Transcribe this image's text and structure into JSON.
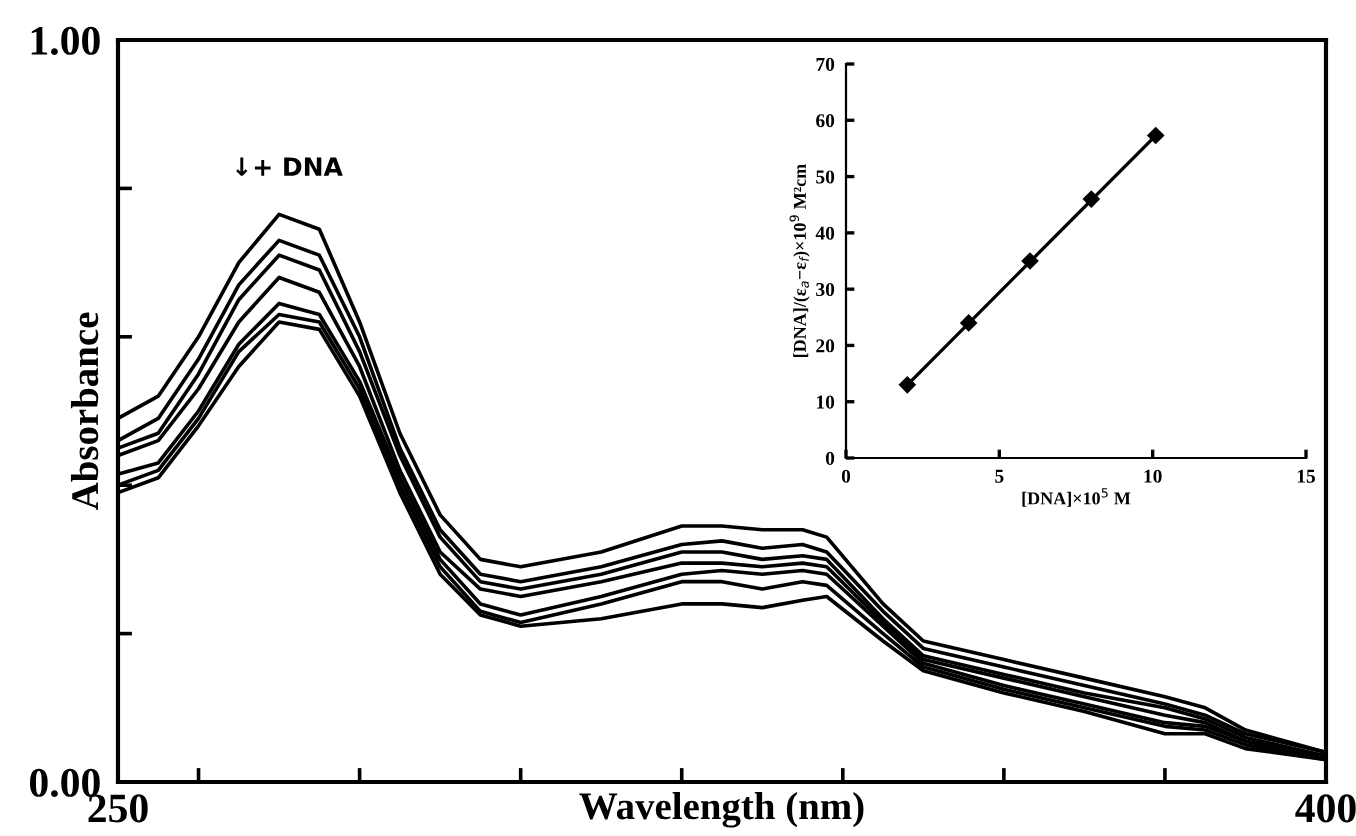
{
  "chart_data": [
    {
      "type": "line",
      "xlabel": "Wavelength (nm)",
      "ylabel": "Absorbance",
      "xlim": [
        250,
        400
      ],
      "ylim": [
        0,
        1
      ],
      "xticks": [
        {
          "value": 250,
          "label": "250"
        },
        {
          "value": 260,
          "label": null
        },
        {
          "value": 280,
          "label": null
        },
        {
          "value": 300,
          "label": null
        },
        {
          "value": 320,
          "label": null
        },
        {
          "value": 340,
          "label": null
        },
        {
          "value": 360,
          "label": null
        },
        {
          "value": 380,
          "label": null
        },
        {
          "value": 400,
          "label": "400"
        }
      ],
      "yticks": [
        {
          "value": 0,
          "label": "0.00"
        },
        {
          "value": 0.2,
          "label": null
        },
        {
          "value": 0.4,
          "label": null
        },
        {
          "value": 0.6,
          "label": null
        },
        {
          "value": 0.8,
          "label": null
        },
        {
          "value": 1,
          "label": "1.00"
        }
      ],
      "x": [
        250,
        255,
        260,
        265,
        270,
        275,
        280,
        285,
        290,
        295,
        300,
        310,
        320,
        325,
        330,
        335,
        338,
        345,
        350,
        360,
        370,
        380,
        385,
        390,
        400
      ],
      "series": [
        {
          "color": "#000000",
          "values": [
            0.49,
            0.52,
            0.6,
            0.7,
            0.765,
            0.745,
            0.62,
            0.47,
            0.36,
            0.3,
            0.29,
            0.31,
            0.345,
            0.345,
            0.34,
            0.34,
            0.33,
            0.24,
            0.19,
            0.165,
            0.14,
            0.115,
            0.1,
            0.07,
            0.04
          ]
        },
        {
          "color": "#000000",
          "values": [
            0.46,
            0.49,
            0.57,
            0.67,
            0.73,
            0.71,
            0.6,
            0.45,
            0.34,
            0.28,
            0.27,
            0.29,
            0.32,
            0.325,
            0.315,
            0.32,
            0.31,
            0.23,
            0.18,
            0.155,
            0.13,
            0.105,
            0.09,
            0.065,
            0.04
          ]
        },
        {
          "color": "#000000",
          "values": [
            0.45,
            0.47,
            0.55,
            0.65,
            0.71,
            0.69,
            0.58,
            0.44,
            0.33,
            0.27,
            0.26,
            0.28,
            0.31,
            0.31,
            0.3,
            0.305,
            0.3,
            0.22,
            0.17,
            0.145,
            0.12,
            0.1,
            0.085,
            0.06,
            0.035
          ]
        },
        {
          "color": "#000000",
          "values": [
            0.44,
            0.46,
            0.53,
            0.62,
            0.68,
            0.66,
            0.56,
            0.42,
            0.31,
            0.26,
            0.25,
            0.27,
            0.295,
            0.295,
            0.29,
            0.295,
            0.29,
            0.215,
            0.165,
            0.14,
            0.115,
            0.09,
            0.08,
            0.055,
            0.035
          ]
        },
        {
          "color": "#000000",
          "values": [
            0.415,
            0.43,
            0.5,
            0.59,
            0.645,
            0.63,
            0.54,
            0.41,
            0.3,
            0.24,
            0.225,
            0.25,
            0.28,
            0.285,
            0.28,
            0.285,
            0.28,
            0.21,
            0.16,
            0.13,
            0.105,
            0.08,
            0.075,
            0.055,
            0.03
          ]
        },
        {
          "color": "#000000",
          "values": [
            0.4,
            0.42,
            0.49,
            0.58,
            0.63,
            0.62,
            0.53,
            0.4,
            0.29,
            0.23,
            0.215,
            0.24,
            0.27,
            0.27,
            0.26,
            0.27,
            0.265,
            0.2,
            0.155,
            0.125,
            0.1,
            0.075,
            0.07,
            0.05,
            0.03
          ]
        },
        {
          "color": "#000000",
          "values": [
            0.39,
            0.41,
            0.48,
            0.56,
            0.62,
            0.61,
            0.52,
            0.39,
            0.28,
            0.225,
            0.21,
            0.22,
            0.24,
            0.24,
            0.235,
            0.245,
            0.25,
            0.19,
            0.15,
            0.12,
            0.095,
            0.065,
            0.065,
            0.045,
            0.03
          ]
        }
      ],
      "annotations": [
        "↓+ DNA"
      ]
    },
    {
      "type": "scatter",
      "xlabel": "[DNA]×10$^{5}$ M",
      "ylabel": "[DNA]/(ε$_{a}$−ε$_{f}$)×10$^{9}$ M²cm",
      "xlim": [
        0,
        15
      ],
      "ylim": [
        0,
        70
      ],
      "xticks": [
        0,
        5,
        10,
        15
      ],
      "yticks": [
        0,
        10,
        20,
        30,
        40,
        50,
        60,
        70
      ],
      "series": [
        {
          "type": "scatter",
          "marker": "diamond",
          "color": "#000000",
          "x": [
            2,
            4,
            6,
            8,
            10.1
          ],
          "values": [
            13,
            24,
            35,
            46,
            57.3
          ]
        },
        {
          "type": "line",
          "color": "#000000",
          "x": [
            2,
            10.1
          ],
          "values": [
            13,
            57.3
          ]
        }
      ]
    }
  ]
}
